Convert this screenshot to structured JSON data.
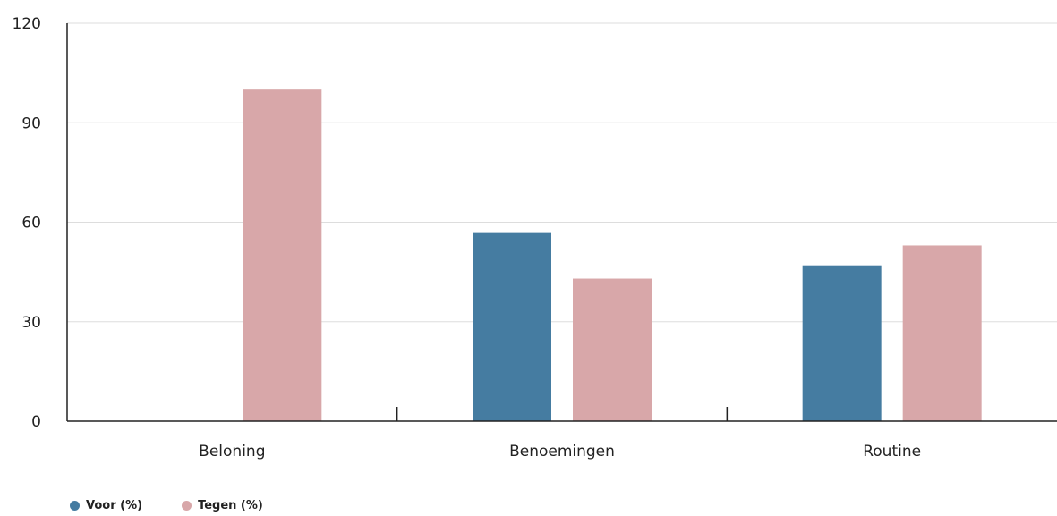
{
  "chart_data": {
    "type": "bar",
    "categories": [
      "Beloning",
      "Benoemingen",
      "Routine"
    ],
    "series": [
      {
        "name": "Voor (%)",
        "values": [
          0,
          57,
          47
        ],
        "color": "#457ca1"
      },
      {
        "name": "Tegen (%)",
        "values": [
          100,
          43,
          53
        ],
        "color": "#d8a7a9"
      }
    ],
    "ylim": [
      0,
      120
    ],
    "yticks": [
      0,
      30,
      60,
      90,
      120
    ],
    "grid": true,
    "legend_position": "bottom-left",
    "title": "",
    "xlabel": "",
    "ylabel": ""
  }
}
